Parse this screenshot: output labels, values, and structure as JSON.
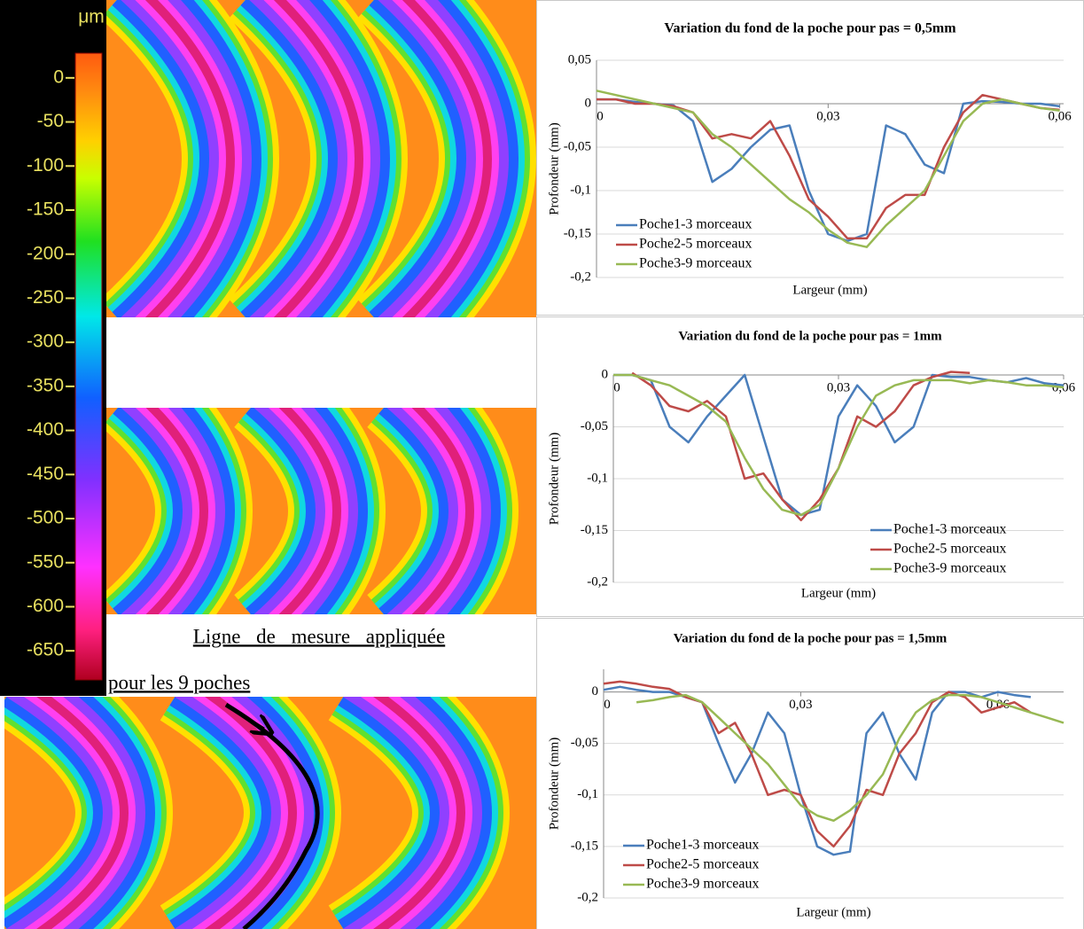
{
  "colorbar": {
    "unit": "μm",
    "ticks": [
      0,
      -50,
      -100,
      -150,
      -200,
      -250,
      -300,
      -350,
      -400,
      -450,
      -500,
      -550,
      -600,
      -650
    ],
    "lim": [
      -683,
      28
    ]
  },
  "caption": [
    "Ligne de mesure appliquée",
    "pour les 9 poches"
  ],
  "chart_data": [
    {
      "type": "line",
      "title": "Variation du fond de la poche pour pas = 0,5mm",
      "xlabel": "Largeur (mm)",
      "ylabel": "Profondeur (mm)",
      "x": [
        0,
        0.0025,
        0.005,
        0.0075,
        0.01,
        0.0125,
        0.015,
        0.0175,
        0.02,
        0.0225,
        0.025,
        0.0275,
        0.03,
        0.0325,
        0.035,
        0.0375,
        0.04,
        0.0425,
        0.045,
        0.0475,
        0.05,
        0.0525,
        0.055,
        0.0575,
        0.06
      ],
      "series": [
        {
          "name": "Poche1-3 morceaux",
          "color": "#4a7ebb",
          "values": [
            0.005,
            0.005,
            0.002,
            0,
            -0.002,
            -0.02,
            -0.09,
            -0.075,
            -0.05,
            -0.03,
            -0.025,
            -0.1,
            -0.15,
            -0.158,
            -0.15,
            -0.025,
            -0.035,
            -0.07,
            -0.08,
            0,
            0.003,
            0.002,
            0,
            0,
            -0.003
          ]
        },
        {
          "name": "Poche2-5 morceaux",
          "color": "#be4b48",
          "values": [
            0.005,
            0.005,
            0,
            0,
            -0.003,
            -0.01,
            -0.04,
            -0.035,
            -0.04,
            -0.02,
            -0.06,
            -0.11,
            -0.13,
            -0.155,
            -0.155,
            -0.12,
            -0.105,
            -0.105,
            -0.05,
            -0.01,
            0.01,
            0.005,
            0,
            -0.005,
            -0.007
          ]
        },
        {
          "name": "Poche3-9 morceaux",
          "color": "#98b954",
          "values": [
            0.015,
            0.01,
            0.005,
            0,
            -0.005,
            -0.01,
            -0.035,
            -0.05,
            -0.07,
            -0.09,
            -0.11,
            -0.125,
            -0.145,
            -0.16,
            -0.165,
            -0.14,
            -0.12,
            -0.1,
            -0.06,
            -0.02,
            0,
            0.005,
            0,
            -0.005,
            -0.008
          ]
        }
      ],
      "xlim": [
        0,
        0.0605
      ],
      "ylim": [
        -0.2,
        0.05
      ],
      "xticks": [
        0,
        {
          "value": 0.03,
          "label": "0,03"
        },
        {
          "value": 0.06,
          "label": "0,06"
        }
      ],
      "yticks": [
        {
          "value": 0.05,
          "label": "0,05"
        },
        0,
        {
          "value": -0.05,
          "label": "-0,05"
        },
        {
          "value": -0.1,
          "label": "-0,1"
        },
        {
          "value": -0.15,
          "label": "-0,15"
        },
        {
          "value": -0.2,
          "label": "-0,2"
        }
      ],
      "grid": true,
      "legend": "lower left"
    },
    {
      "type": "line",
      "title": "Variation du fond de la poche pour pas = 1mm",
      "xlabel": "Largeur (mm)",
      "ylabel": "Profondeur (mm)",
      "x": [
        0,
        0.0025,
        0.005,
        0.0075,
        0.01,
        0.0125,
        0.015,
        0.0175,
        0.02,
        0.0225,
        0.025,
        0.0275,
        0.03,
        0.0325,
        0.035,
        0.0375,
        0.04,
        0.0425,
        0.045,
        0.0475,
        0.05,
        0.0525,
        0.055,
        0.0575,
        0.06
      ],
      "series": [
        {
          "name": "Poche1-3 morceaux",
          "color": "#4a7ebb",
          "values": [
            0,
            0,
            -0.005,
            -0.05,
            -0.065,
            -0.04,
            -0.02,
            0,
            -0.06,
            -0.12,
            -0.135,
            -0.13,
            -0.04,
            -0.01,
            -0.03,
            -0.065,
            -0.05,
            0,
            -0.002,
            -0.002,
            -0.005,
            -0.007,
            -0.003,
            -0.008,
            -0.01
          ]
        },
        {
          "name": "Poche2-5 morceaux",
          "color": "#be4b48",
          "values": [
            null,
            0.002,
            -0.01,
            -0.03,
            -0.035,
            -0.025,
            -0.04,
            -0.1,
            -0.095,
            -0.12,
            -0.14,
            -0.12,
            -0.09,
            -0.04,
            -0.05,
            -0.035,
            -0.01,
            -0.002,
            0.003,
            0.002,
            null,
            null,
            null,
            null,
            null
          ]
        },
        {
          "name": "Poche3-9 morceaux",
          "color": "#98b954",
          "values": [
            0,
            0,
            -0.005,
            -0.01,
            -0.02,
            -0.03,
            -0.045,
            -0.08,
            -0.11,
            -0.13,
            -0.135,
            -0.125,
            -0.09,
            -0.05,
            -0.02,
            -0.01,
            -0.005,
            -0.005,
            -0.005,
            -0.008,
            -0.005,
            -0.007,
            -0.01,
            -0.01,
            -0.012
          ]
        }
      ],
      "xlim": [
        0,
        0.06
      ],
      "ylim": [
        -0.2,
        0
      ],
      "xticks": [
        0,
        {
          "value": 0.03,
          "label": "0,03"
        },
        {
          "value": 0.06,
          "label": "0,06"
        }
      ],
      "yticks": [
        0,
        {
          "value": -0.05,
          "label": "-0,05"
        },
        {
          "value": -0.1,
          "label": "-0,1"
        },
        {
          "value": -0.15,
          "label": "-0,15"
        },
        {
          "value": -0.2,
          "label": "-0,2"
        }
      ],
      "grid": true,
      "legend": "lower right"
    },
    {
      "type": "line",
      "title": "Variation du fond de la poche pour pas = 1,5mm",
      "xlabel": "Largeur (mm)",
      "ylabel": "Profondeur (mm)",
      "x": [
        0,
        0.0025,
        0.005,
        0.0075,
        0.01,
        0.0125,
        0.015,
        0.0175,
        0.02,
        0.0225,
        0.025,
        0.0275,
        0.03,
        0.0325,
        0.035,
        0.0375,
        0.04,
        0.0425,
        0.045,
        0.0475,
        0.05,
        0.0525,
        0.055,
        0.0575,
        0.06,
        0.0625,
        0.065,
        0.0675,
        0.07
      ],
      "series": [
        {
          "name": "Poche1-3 morceaux",
          "color": "#4a7ebb",
          "values": [
            0.002,
            0.005,
            0.002,
            0,
            0,
            -0.005,
            -0.01,
            -0.05,
            -0.088,
            -0.06,
            -0.02,
            -0.04,
            -0.1,
            -0.15,
            -0.158,
            -0.155,
            -0.04,
            -0.02,
            -0.06,
            -0.085,
            -0.02,
            0,
            0,
            -0.005,
            0,
            -0.003,
            -0.005,
            null,
            null
          ]
        },
        {
          "name": "Poche2-5 morceaux",
          "color": "#be4b48",
          "values": [
            0.008,
            0.01,
            0.008,
            0.005,
            0.003,
            -0.005,
            -0.01,
            -0.04,
            -0.03,
            -0.06,
            -0.1,
            -0.095,
            -0.1,
            -0.135,
            -0.15,
            -0.13,
            -0.095,
            -0.1,
            -0.06,
            -0.04,
            -0.01,
            0,
            -0.005,
            -0.02,
            -0.015,
            -0.01,
            -0.02,
            null,
            null
          ]
        },
        {
          "name": "Poche3-9 morceaux",
          "color": "#98b954",
          "values": [
            null,
            null,
            -0.01,
            -0.008,
            -0.005,
            -0.003,
            -0.01,
            -0.025,
            -0.04,
            -0.055,
            -0.07,
            -0.09,
            -0.11,
            -0.12,
            -0.125,
            -0.115,
            -0.1,
            -0.08,
            -0.045,
            -0.02,
            -0.008,
            -0.003,
            -0.003,
            -0.005,
            -0.01,
            -0.015,
            -0.02,
            -0.025,
            -0.03
          ]
        }
      ],
      "xlim": [
        0,
        0.07
      ],
      "ylim": [
        -0.2,
        0.022
      ],
      "xticks": [
        0,
        {
          "value": 0.03,
          "label": "0,03"
        },
        {
          "value": 0.06,
          "label": "0,06"
        }
      ],
      "yticks": [
        0,
        {
          "value": -0.05,
          "label": "-0,05"
        },
        {
          "value": -0.1,
          "label": "-0,1"
        },
        {
          "value": -0.15,
          "label": "-0,15"
        },
        {
          "value": -0.2,
          "label": "-0,2"
        }
      ],
      "grid": true,
      "legend": "lower left"
    }
  ]
}
